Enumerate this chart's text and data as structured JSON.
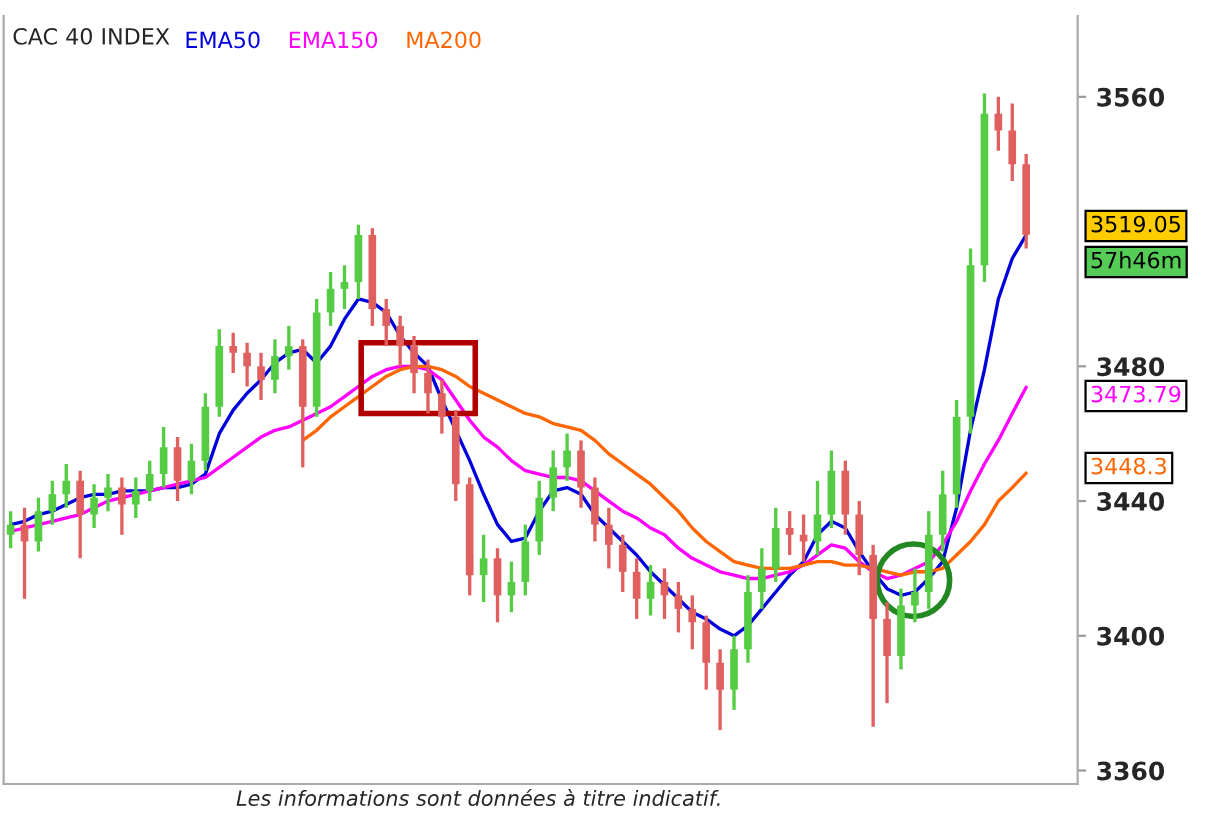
{
  "chart_data": {
    "type": "candlestick",
    "title": "CAC 40 INDEX",
    "categories": [
      null,
      null,
      null,
      null,
      null,
      null,
      null,
      null,
      null,
      null,
      null,
      null,
      null,
      null,
      null,
      null,
      null,
      null,
      null,
      null,
      null,
      null,
      null,
      null,
      null,
      null,
      null,
      null,
      null,
      null,
      null,
      null,
      null,
      null,
      null,
      null,
      null,
      null,
      null,
      null,
      null,
      null,
      null,
      null,
      null,
      null,
      null,
      null,
      null,
      null,
      null,
      null,
      null,
      null,
      null,
      null,
      null,
      null,
      null,
      null,
      null,
      null,
      null,
      null,
      null,
      null,
      null,
      null,
      null,
      null,
      null,
      null,
      null,
      null
    ],
    "ohlc": [
      [
        3430,
        3437,
        3426,
        3433
      ],
      [
        3433,
        3438,
        3411,
        3428
      ],
      [
        3428,
        3441,
        3425,
        3437
      ],
      [
        3437,
        3446,
        3433,
        3442
      ],
      [
        3442,
        3451,
        3438,
        3446
      ],
      [
        3446,
        3449,
        3423,
        3436
      ],
      [
        3436,
        3445,
        3432,
        3441
      ],
      [
        3441,
        3448,
        3437,
        3444
      ],
      [
        3444,
        3447,
        3430,
        3439
      ],
      [
        3439,
        3447,
        3435,
        3443
      ],
      [
        3443,
        3452,
        3440,
        3448
      ],
      [
        3448,
        3462,
        3444,
        3456
      ],
      [
        3456,
        3459,
        3440,
        3446
      ],
      [
        3446,
        3457,
        3442,
        3452
      ],
      [
        3452,
        3472,
        3449,
        3468
      ],
      [
        3468,
        3491,
        3465,
        3486
      ],
      [
        3486,
        3490,
        3478,
        3484
      ],
      [
        3484,
        3487,
        3474,
        3480
      ],
      [
        3480,
        3484,
        3470,
        3476
      ],
      [
        3476,
        3488,
        3472,
        3483
      ],
      [
        3483,
        3492,
        3479,
        3486
      ],
      [
        3486,
        3488,
        3450,
        3468
      ],
      [
        3468,
        3500,
        3465,
        3496
      ],
      [
        3496,
        3508,
        3492,
        3503
      ],
      [
        3503,
        3510,
        3497,
        3505
      ],
      [
        3505,
        3522,
        3500,
        3519
      ],
      [
        3519,
        3521,
        3492,
        3497
      ],
      [
        3497,
        3500,
        3486,
        3492
      ],
      [
        3492,
        3495,
        3480,
        3486
      ],
      [
        3486,
        3489,
        3472,
        3478
      ],
      [
        3478,
        3482,
        3466,
        3472
      ],
      [
        3472,
        3476,
        3460,
        3465
      ],
      [
        3465,
        3467,
        3440,
        3445
      ],
      [
        3445,
        3447,
        3412,
        3418
      ],
      [
        3418,
        3430,
        3410,
        3423
      ],
      [
        3423,
        3426,
        3404,
        3412
      ],
      [
        3412,
        3422,
        3407,
        3416
      ],
      [
        3416,
        3433,
        3412,
        3428
      ],
      [
        3428,
        3446,
        3424,
        3441
      ],
      [
        3441,
        3455,
        3437,
        3450
      ],
      [
        3450,
        3460,
        3446,
        3455
      ],
      [
        3455,
        3458,
        3438,
        3444
      ],
      [
        3444,
        3447,
        3428,
        3433
      ],
      [
        3433,
        3438,
        3420,
        3427
      ],
      [
        3427,
        3430,
        3413,
        3419
      ],
      [
        3419,
        3423,
        3405,
        3411
      ],
      [
        3411,
        3421,
        3406,
        3416
      ],
      [
        3416,
        3420,
        3405,
        3412
      ],
      [
        3412,
        3416,
        3401,
        3408
      ],
      [
        3408,
        3412,
        3396,
        3404
      ],
      [
        3404,
        3406,
        3384,
        3392
      ],
      [
        3392,
        3396,
        3372,
        3384
      ],
      [
        3384,
        3400,
        3378,
        3396
      ],
      [
        3396,
        3418,
        3392,
        3413
      ],
      [
        3413,
        3426,
        3408,
        3420
      ],
      [
        3420,
        3438,
        3416,
        3432
      ],
      [
        3432,
        3437,
        3424,
        3430
      ],
      [
        3430,
        3436,
        3422,
        3428
      ],
      [
        3428,
        3446,
        3424,
        3436
      ],
      [
        3436,
        3455,
        3432,
        3449
      ],
      [
        3449,
        3452,
        3430,
        3436
      ],
      [
        3436,
        3440,
        3418,
        3424
      ],
      [
        3424,
        3427,
        3373,
        3405
      ],
      [
        3405,
        3410,
        3380,
        3394
      ],
      [
        3394,
        3414,
        3390,
        3409
      ],
      [
        3409,
        3420,
        3404,
        3413
      ],
      [
        3413,
        3437,
        3408,
        3430
      ],
      [
        3430,
        3449,
        3425,
        3442
      ],
      [
        3442,
        3470,
        3438,
        3465
      ],
      [
        3465,
        3515,
        3460,
        3510
      ],
      [
        3510,
        3561,
        3505,
        3555
      ],
      [
        3555,
        3560,
        3544,
        3550
      ],
      [
        3550,
        3558,
        3535,
        3540
      ],
      [
        3540,
        3543,
        3515,
        3519.05
      ]
    ],
    "series": [
      {
        "name": "EMA50",
        "type": "line",
        "color": "#0000dd",
        "values": [
          3433,
          3434,
          3436,
          3437,
          3439,
          3441,
          3442,
          3442,
          3443,
          3443,
          3443,
          3444,
          3444,
          3445,
          3448,
          3460,
          3467,
          3472,
          3476,
          3481,
          3484,
          3485,
          3481,
          3486,
          3494,
          3500,
          3499,
          3496,
          3489,
          3484,
          3480,
          3470,
          3461,
          3452,
          3442,
          3433,
          3428,
          3429,
          3437,
          3443,
          3444,
          3442,
          3436,
          3432,
          3428,
          3424,
          3419,
          3415,
          3411,
          3407,
          3405,
          3402,
          3400,
          3403,
          3408,
          3413,
          3418,
          3422,
          3430,
          3434,
          3432,
          3425,
          3419,
          3414,
          3412,
          3413,
          3417,
          3422,
          3438,
          3461,
          3479,
          3500,
          3512,
          3519
        ]
      },
      {
        "name": "EMA150",
        "type": "line",
        "color": "#ff00ff",
        "values": [
          3431,
          3432,
          3433,
          3434,
          3435,
          3436,
          3438,
          3440,
          3441,
          3442,
          3443,
          3444,
          3445,
          3446,
          3447,
          3450,
          3453,
          3456,
          3459,
          3461,
          3462,
          3464,
          3466,
          3468,
          3471,
          3474,
          3477,
          3479,
          3480,
          3480,
          3479,
          3476,
          3470,
          3464,
          3459,
          3456,
          3452,
          3449,
          3448,
          3447,
          3447,
          3446,
          3443,
          3440,
          3437,
          3435,
          3432,
          3430,
          3426,
          3423,
          3421,
          3419,
          3418,
          3417,
          3417,
          3418,
          3419,
          3421,
          3424,
          3427,
          3426,
          3422,
          3419,
          3417,
          3418,
          3420,
          3422,
          3427,
          3434,
          3443,
          3451,
          3458,
          3466,
          3473.79
        ]
      },
      {
        "name": "MA200",
        "type": "line",
        "color": "#ff6600",
        "values": [
          null,
          null,
          null,
          null,
          null,
          null,
          null,
          null,
          null,
          null,
          null,
          null,
          null,
          null,
          null,
          null,
          null,
          null,
          null,
          null,
          null,
          3458,
          3461,
          3465,
          3468,
          3471,
          3474,
          3477,
          3479,
          3480,
          3480,
          3479,
          3477,
          3474,
          3472,
          3470,
          3468,
          3466,
          3465,
          3463,
          3462,
          3461,
          3458,
          3454,
          3451,
          3448,
          3445,
          3441,
          3437,
          3432,
          3428,
          3425,
          3422,
          3421,
          3420,
          3420,
          3420,
          3421,
          3422,
          3422,
          3421,
          3421,
          3420,
          3419,
          3418,
          3419,
          3419,
          3420,
          3424,
          3428,
          3433,
          3440,
          3444,
          3448.3
        ]
      }
    ],
    "ylim": [
      3356,
      3584
    ],
    "yticks": [
      3360,
      3400,
      3440,
      3480,
      3560
    ],
    "tick_labels": "y",
    "legend": "top left",
    "grid": false,
    "annotations": [
      "3519.05",
      "57h46m",
      "3473.79",
      "3448.3",
      "Les informations sont données à titre indicatif."
    ]
  }
}
